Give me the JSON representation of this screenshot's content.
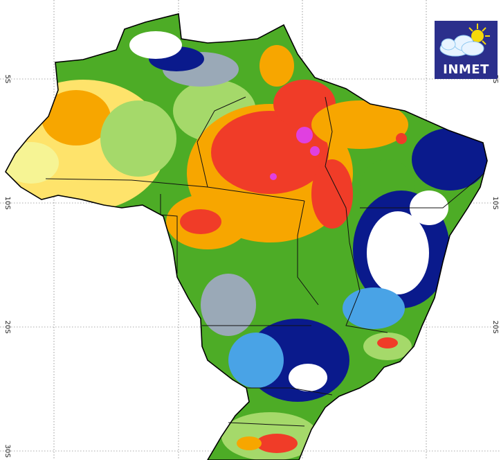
{
  "map": {
    "grid_labels": {
      "lat_5s": "5S",
      "lat_10s": "10S",
      "lat_20s": "20S",
      "lat_30s": "30S"
    },
    "palette": {
      "dry_dark_red": "#d7191c",
      "magenta_peak": "#e040e0",
      "red": "#f03c28",
      "orange": "#f7a600",
      "yellow": "#fee36b",
      "pale_yellow": "#f6f494",
      "light_green": "#a5d96a",
      "green": "#4dac26",
      "dark_green": "#1a7d1a",
      "gray": "#9aa9b7",
      "light_blue": "#49a3e6",
      "dark_blue": "#0a1a8c",
      "white": "#ffffff"
    }
  },
  "logo": {
    "text": "INMET",
    "icon": "sun-cloud-icon",
    "background": "#2b2f8c"
  }
}
